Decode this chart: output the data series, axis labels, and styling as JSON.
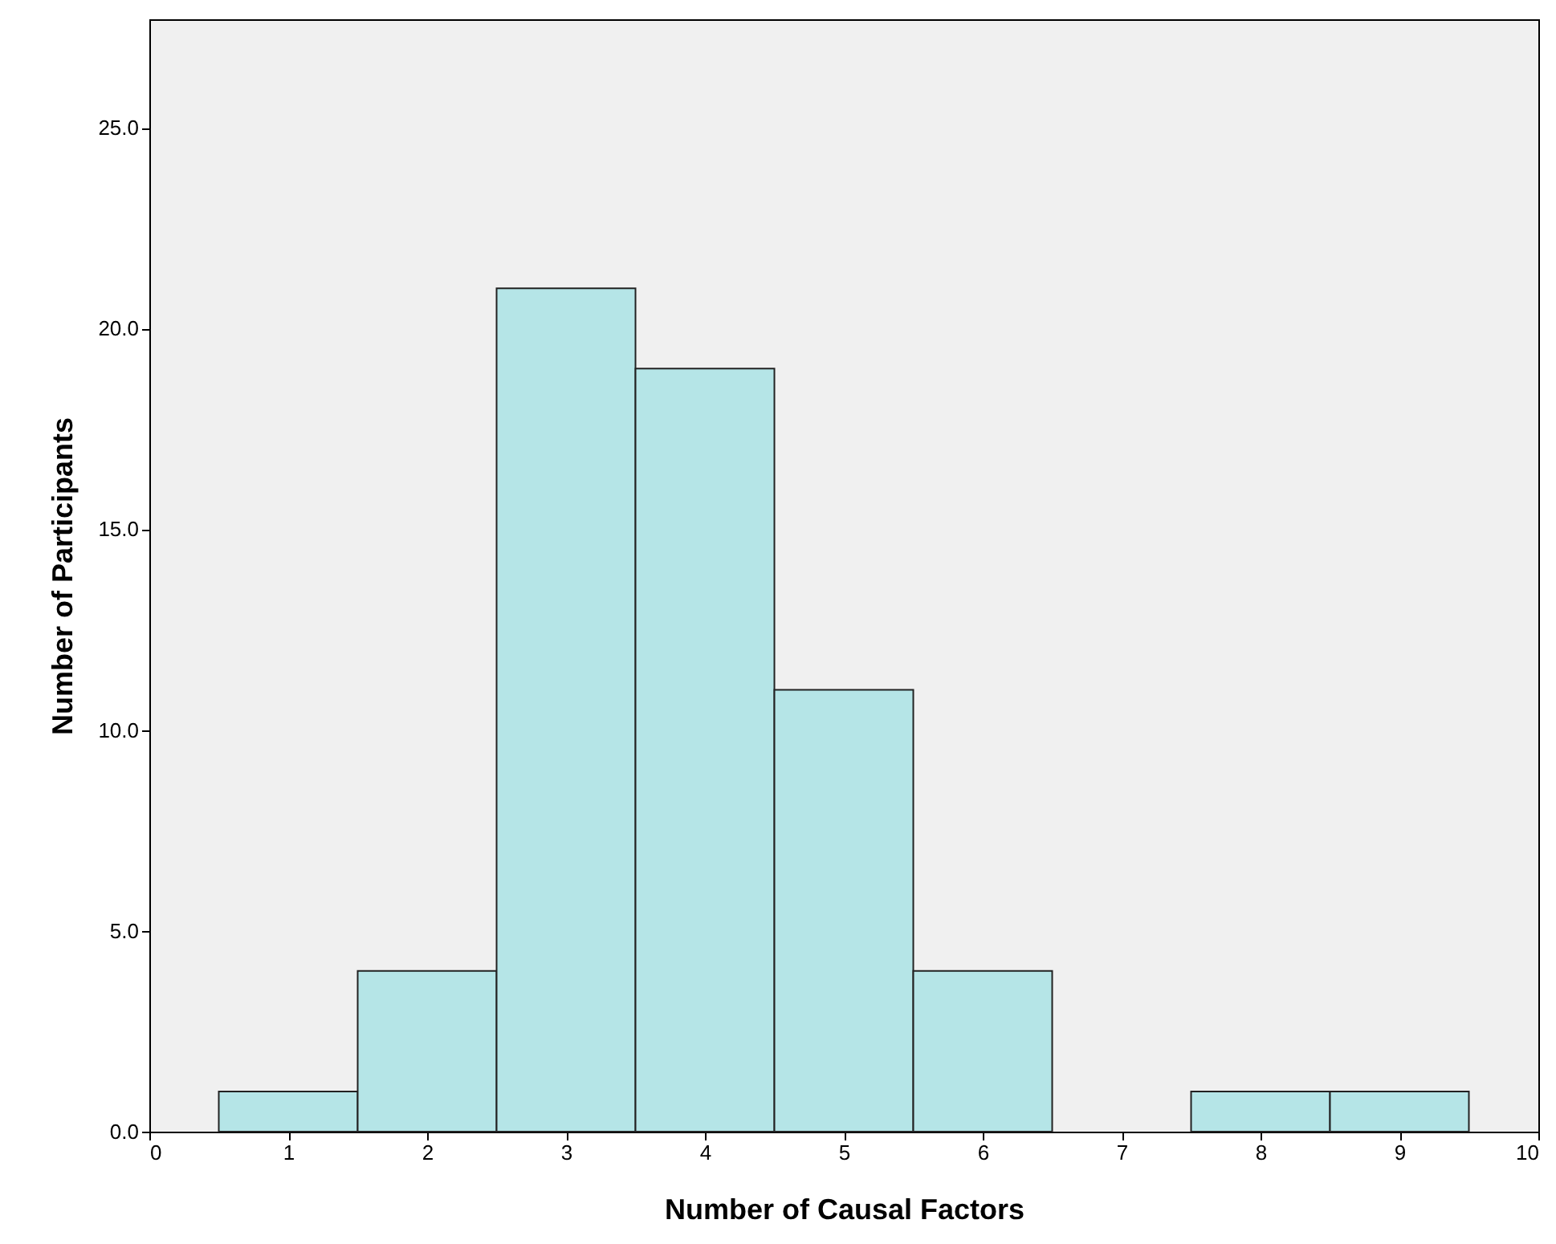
{
  "chart_data": {
    "type": "histogram",
    "xlabel": "Number of Causal Factors",
    "ylabel": "Number of Participants",
    "bins": [
      0.5,
      1.5,
      2.5,
      3.5,
      4.5,
      5.5,
      6.5,
      7.5,
      8.5,
      9.5
    ],
    "values": [
      1,
      4,
      21,
      19,
      11,
      4,
      0,
      1,
      1
    ],
    "color": "#b5e5e7",
    "xlim": [
      0,
      10
    ],
    "xticks": [
      0,
      1,
      2,
      3,
      4,
      5,
      6,
      7,
      8,
      9,
      10
    ],
    "ylim": [
      0,
      27.7
    ],
    "yticks": [
      {
        "value": 0,
        "label": "0.0"
      },
      {
        "value": 5,
        "label": "5.0"
      },
      {
        "value": 10,
        "label": "10.0"
      },
      {
        "value": 15,
        "label": "15.0"
      },
      {
        "value": 20,
        "label": "20.0"
      },
      {
        "value": 25,
        "label": "25.0"
      }
    ],
    "grid": false
  }
}
